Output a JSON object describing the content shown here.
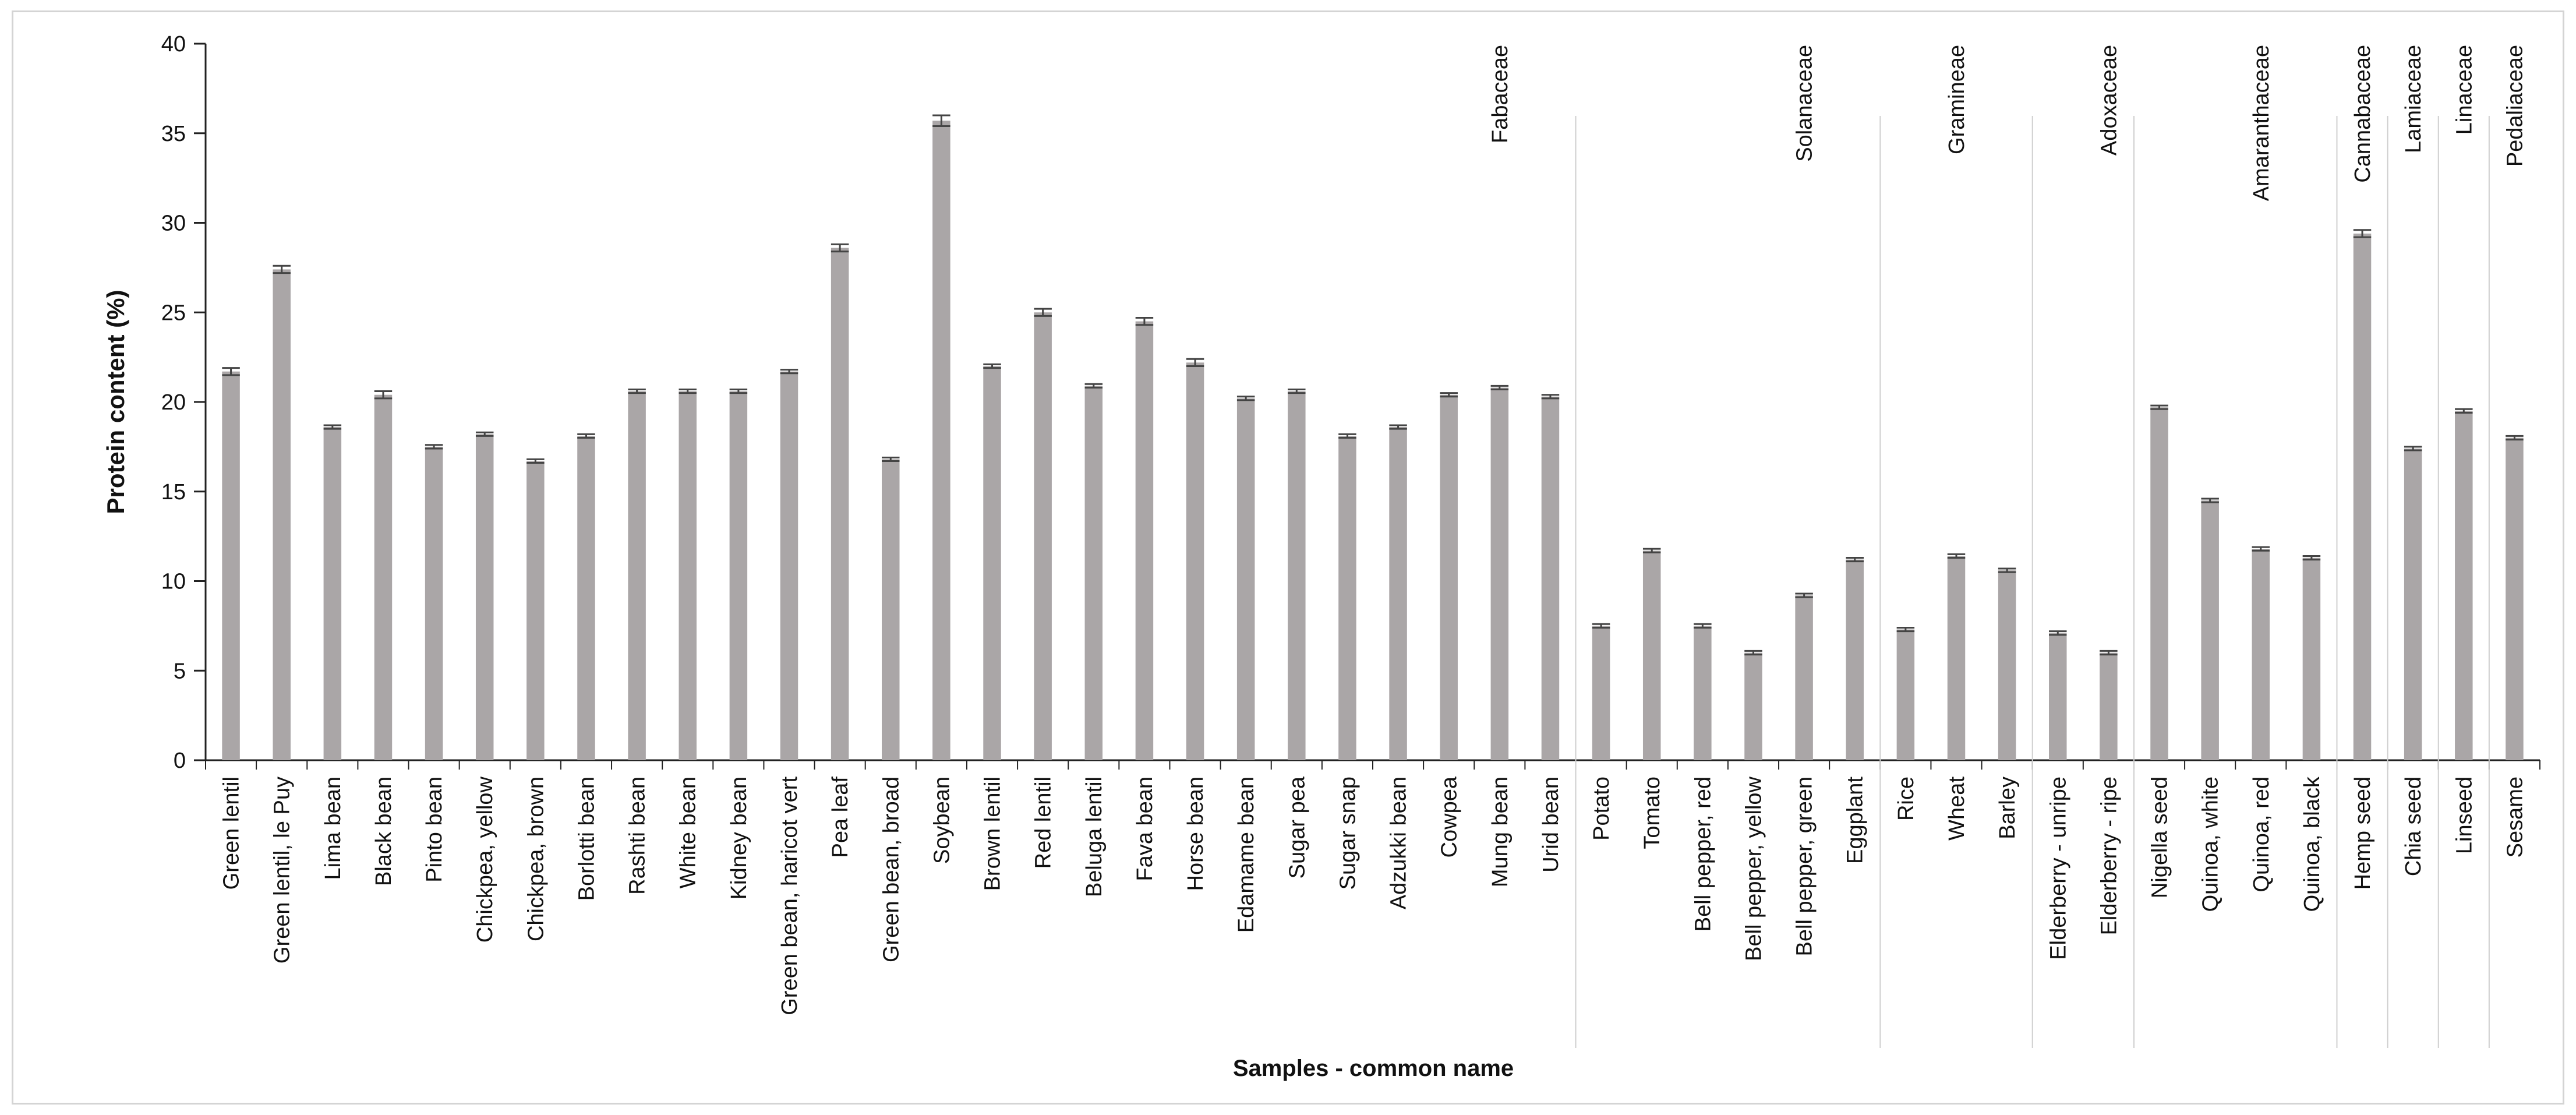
{
  "chart_data": {
    "type": "bar",
    "ylabel": "Protein content (%)",
    "xlabel": "Samples - common name",
    "ylim": [
      0,
      40
    ],
    "yticks": [
      0,
      5,
      10,
      15,
      20,
      25,
      30,
      35,
      40
    ],
    "grid": false,
    "legend": "none",
    "bar_color": "#aaa6a7",
    "error_bar_color": "#444444",
    "categories": [
      "Green lentil",
      "Green lentil, le Puy",
      "Lima bean",
      "Black bean",
      "Pinto bean",
      "Chickpea, yellow",
      "Chickpea, brown",
      "Borlotti bean",
      "Rashti bean",
      "White bean",
      "Kidney bean",
      "Green bean, haricot vert",
      "Pea leaf",
      "Green bean, broad",
      "Soybean",
      "Brown lentil",
      "Red lentil",
      "Beluga lentil",
      "Fava bean",
      "Horse bean",
      "Edamame bean",
      "Sugar pea",
      "Sugar snap",
      "Adzukki bean",
      "Cowpea",
      "Mung bean",
      "Urid bean",
      "Potato",
      "Tomato",
      "Bell pepper, red",
      "Bell pepper, yellow",
      "Bell pepper, green",
      "Eggplant",
      "Rice",
      "Wheat",
      "Barley",
      "Elderberry - unripe",
      "Elderberry - ripe",
      "Nigella seed",
      "Quinoa, white",
      "Quinoa, red",
      "Quinoa, black",
      "Hemp seed",
      "Chia seed",
      "Linseed",
      "Sesame"
    ],
    "values": [
      21.7,
      27.4,
      18.6,
      20.4,
      17.5,
      18.2,
      16.7,
      18.1,
      20.6,
      20.6,
      20.6,
      21.7,
      28.6,
      16.8,
      35.7,
      22.0,
      25.0,
      20.9,
      24.5,
      22.2,
      20.2,
      20.6,
      18.1,
      18.6,
      20.4,
      20.8,
      20.3,
      7.5,
      11.7,
      7.5,
      6.0,
      9.2,
      11.2,
      7.3,
      11.4,
      10.6,
      7.1,
      6.0,
      19.7,
      14.5,
      11.8,
      11.3,
      29.4,
      17.4,
      19.5,
      18.0
    ],
    "errors": [
      0.2,
      0.2,
      0.1,
      0.2,
      0.1,
      0.1,
      0.1,
      0.1,
      0.1,
      0.1,
      0.1,
      0.1,
      0.2,
      0.1,
      0.3,
      0.1,
      0.2,
      0.1,
      0.2,
      0.2,
      0.1,
      0.1,
      0.1,
      0.1,
      0.1,
      0.1,
      0.1,
      0.1,
      0.1,
      0.1,
      0.1,
      0.1,
      0.1,
      0.1,
      0.1,
      0.1,
      0.1,
      0.1,
      0.1,
      0.1,
      0.1,
      0.1,
      0.2,
      0.1,
      0.1,
      0.1
    ],
    "families": [
      {
        "name": "Fabaceae",
        "start": 0,
        "end": 26
      },
      {
        "name": "Solanaceae",
        "start": 27,
        "end": 32
      },
      {
        "name": "Gramineae",
        "start": 33,
        "end": 35
      },
      {
        "name": "Adoxaceae",
        "start": 36,
        "end": 37
      },
      {
        "name": "Amaranthaceae",
        "start": 38,
        "end": 41
      },
      {
        "name": "Cannabaceae",
        "start": 42,
        "end": 42
      },
      {
        "name": "Lamiaceae",
        "start": 43,
        "end": 43
      },
      {
        "name": "Linaceae",
        "start": 44,
        "end": 44
      },
      {
        "name": "Pedaliaceae",
        "start": 45,
        "end": 45
      }
    ]
  }
}
